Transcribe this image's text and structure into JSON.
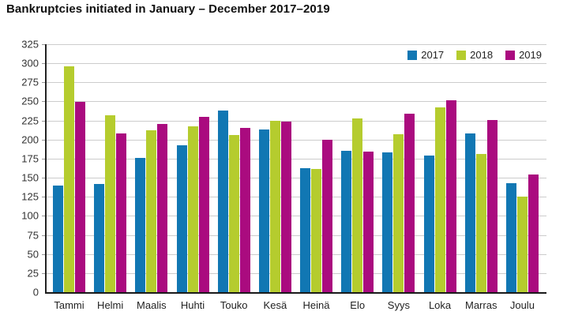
{
  "title": "Bankruptcies initiated in January – December 2017–2019",
  "chart_data": {
    "type": "bar",
    "title": "Bankruptcies initiated in January – December 2017–2019",
    "categories": [
      "Tammi",
      "Helmi",
      "Maalis",
      "Huhti",
      "Touko",
      "Kesä",
      "Heinä",
      "Elo",
      "Syys",
      "Loka",
      "Marras",
      "Joulu"
    ],
    "series": [
      {
        "name": "2017",
        "color": "#1177b3",
        "values": [
          140,
          142,
          176,
          193,
          238,
          213,
          163,
          185,
          183,
          179,
          208,
          143
        ]
      },
      {
        "name": "2018",
        "color": "#b5cc2e",
        "values": [
          296,
          232,
          212,
          217,
          206,
          225,
          161,
          228,
          207,
          242,
          181,
          125
        ]
      },
      {
        "name": "2019",
        "color": "#aa0b7f",
        "values": [
          249,
          208,
          220,
          230,
          215,
          224,
          200,
          184,
          234,
          251,
          226,
          154
        ]
      }
    ],
    "xlabel": "",
    "ylabel": "",
    "ylim": [
      0,
      325
    ],
    "ytick_step": 25,
    "grid": "horizontal",
    "gridline_color": "#cccccc",
    "axis_color": "#1a1a1a",
    "legend_position": "top-right",
    "legend_labels": [
      "2017",
      "2018",
      "2019"
    ]
  }
}
